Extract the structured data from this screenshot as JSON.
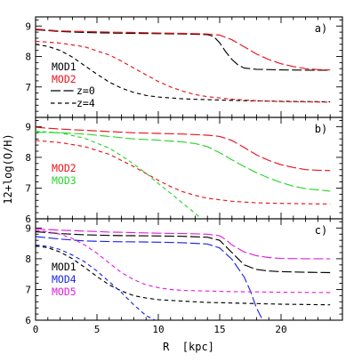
{
  "chart_data": [
    {
      "type": "line",
      "panel_label": "a)",
      "xlim": [
        0,
        25
      ],
      "ylim": [
        6,
        9.3
      ],
      "xticks": [
        0,
        5,
        10,
        15,
        20
      ],
      "yticks": [
        7,
        8,
        9
      ],
      "legend": [
        {
          "text": "MOD1",
          "color": "#000000"
        },
        {
          "text": "MOD2",
          "color": "#e8141c"
        }
      ],
      "redshift_key": [
        {
          "text": "z=0",
          "dash": "long"
        },
        {
          "text": "z=4",
          "dash": "short"
        }
      ],
      "series": [
        {
          "model": "MOD1",
          "z": "z=0",
          "color": "#000000",
          "dash": "long",
          "x": [
            0,
            2,
            4,
            6,
            8,
            10,
            12,
            13,
            14,
            14.5,
            15,
            15.5,
            16,
            16.5,
            17,
            18,
            20,
            22,
            24
          ],
          "y": [
            8.88,
            8.82,
            8.79,
            8.77,
            8.76,
            8.75,
            8.74,
            8.73,
            8.72,
            8.66,
            8.45,
            8.15,
            7.9,
            7.72,
            7.62,
            7.58,
            7.56,
            7.55,
            7.55
          ]
        },
        {
          "model": "MOD2",
          "z": "z=0",
          "color": "#e8141c",
          "dash": "long",
          "x": [
            0,
            2,
            4,
            6,
            8,
            10,
            12,
            14,
            15,
            16,
            17,
            18,
            19,
            20,
            21,
            22,
            23,
            24
          ],
          "y": [
            8.9,
            8.84,
            8.82,
            8.8,
            8.79,
            8.77,
            8.76,
            8.74,
            8.7,
            8.55,
            8.32,
            8.08,
            7.9,
            7.76,
            7.67,
            7.6,
            7.57,
            7.56
          ]
        },
        {
          "model": "MOD1",
          "z": "z=4",
          "color": "#000000",
          "dash": "short",
          "x": [
            0,
            1,
            2,
            3,
            4,
            5,
            6,
            7,
            8,
            9,
            10,
            12,
            14,
            17,
            20,
            24
          ],
          "y": [
            8.4,
            8.33,
            8.2,
            7.98,
            7.7,
            7.42,
            7.16,
            6.96,
            6.82,
            6.72,
            6.67,
            6.61,
            6.58,
            6.55,
            6.53,
            6.51
          ]
        },
        {
          "model": "MOD2",
          "z": "z=4",
          "color": "#e8141c",
          "dash": "short",
          "x": [
            0,
            2,
            4,
            6,
            7,
            8,
            9,
            10,
            11,
            12,
            13,
            14,
            16,
            18,
            20,
            22,
            24
          ],
          "y": [
            8.5,
            8.44,
            8.32,
            8.05,
            7.85,
            7.62,
            7.4,
            7.18,
            7.0,
            6.86,
            6.75,
            6.68,
            6.6,
            6.55,
            6.52,
            6.51,
            6.5
          ]
        }
      ]
    },
    {
      "type": "line",
      "panel_label": "b)",
      "xlim": [
        0,
        25
      ],
      "ylim": [
        6,
        9.3
      ],
      "xticks": [
        0,
        5,
        10,
        15,
        20
      ],
      "yticks": [
        6,
        7,
        8,
        9
      ],
      "legend": [
        {
          "text": "MOD2",
          "color": "#e8141c"
        },
        {
          "text": "MOD3",
          "color": "#2bd62b"
        }
      ],
      "series": [
        {
          "model": "MOD2",
          "z": "z=0",
          "color": "#e8141c",
          "dash": "long",
          "x": [
            0,
            2,
            4,
            6,
            8,
            10,
            12,
            14,
            15,
            16,
            17,
            18,
            19,
            20,
            21,
            22,
            23,
            24
          ],
          "y": [
            8.98,
            8.92,
            8.88,
            8.84,
            8.8,
            8.78,
            8.76,
            8.72,
            8.68,
            8.55,
            8.32,
            8.08,
            7.9,
            7.76,
            7.67,
            7.6,
            7.58,
            7.57
          ]
        },
        {
          "model": "MOD3",
          "z": "z=0",
          "color": "#2bd62b",
          "dash": "long",
          "x": [
            0,
            2,
            4,
            6,
            8,
            10,
            12,
            13,
            14,
            15,
            16,
            17,
            18,
            19,
            20,
            21,
            22,
            23,
            24
          ],
          "y": [
            8.82,
            8.8,
            8.76,
            8.68,
            8.6,
            8.56,
            8.5,
            8.45,
            8.35,
            8.15,
            7.92,
            7.7,
            7.5,
            7.33,
            7.18,
            7.06,
            6.98,
            6.94,
            6.9
          ]
        },
        {
          "model": "MOD2",
          "z": "z=4",
          "color": "#e8141c",
          "dash": "short",
          "x": [
            0,
            2,
            4,
            6,
            8,
            10,
            11,
            12,
            13,
            14,
            16,
            18,
            20,
            24
          ],
          "y": [
            8.55,
            8.48,
            8.35,
            8.1,
            7.7,
            7.25,
            7.05,
            6.88,
            6.76,
            6.67,
            6.57,
            6.52,
            6.5,
            6.48
          ]
        },
        {
          "model": "MOD3",
          "z": "z=4",
          "color": "#2bd62b",
          "dash": "short",
          "x": [
            0,
            2,
            4,
            6,
            7,
            8,
            9,
            10,
            11,
            12,
            13,
            13.5
          ],
          "y": [
            8.85,
            8.8,
            8.62,
            8.3,
            8.05,
            7.78,
            7.48,
            7.15,
            6.83,
            6.5,
            6.18,
            6.0
          ]
        }
      ]
    },
    {
      "type": "line",
      "panel_label": "c)",
      "xlim": [
        0,
        25
      ],
      "ylim": [
        6,
        9.3
      ],
      "xticks": [
        0,
        5,
        10,
        15,
        20
      ],
      "yticks": [
        6,
        7,
        8,
        9
      ],
      "xlabel": "R  [kpc]",
      "legend": [
        {
          "text": "MOD1",
          "color": "#000000"
        },
        {
          "text": "MOD4",
          "color": "#1c28e0"
        },
        {
          "text": "MOD5",
          "color": "#e020e0"
        }
      ],
      "series": [
        {
          "model": "MOD5",
          "z": "z=0",
          "color": "#e020e0",
          "dash": "long",
          "x": [
            0,
            2,
            4,
            6,
            8,
            10,
            12,
            14,
            15,
            15.5,
            16,
            17,
            18,
            19,
            20,
            22,
            24
          ],
          "y": [
            8.97,
            8.93,
            8.9,
            8.87,
            8.85,
            8.83,
            8.82,
            8.8,
            8.75,
            8.62,
            8.45,
            8.22,
            8.1,
            8.04,
            8.01,
            8.0,
            8.0
          ]
        },
        {
          "model": "MOD1",
          "z": "z=0",
          "color": "#000000",
          "dash": "long",
          "x": [
            0,
            2,
            4,
            6,
            8,
            10,
            12,
            14,
            15,
            15.5,
            16,
            17,
            18,
            19,
            20,
            22,
            24
          ],
          "y": [
            8.88,
            8.82,
            8.78,
            8.76,
            8.75,
            8.74,
            8.73,
            8.7,
            8.6,
            8.4,
            8.2,
            7.8,
            7.65,
            7.6,
            7.58,
            7.56,
            7.55
          ]
        },
        {
          "model": "MOD4",
          "z": "z=0",
          "color": "#1c28e0",
          "dash": "long",
          "x": [
            0,
            2,
            4,
            6,
            8,
            10,
            12,
            14,
            15,
            16,
            17,
            17.5,
            18,
            18.5
          ],
          "y": [
            8.72,
            8.64,
            8.58,
            8.56,
            8.55,
            8.54,
            8.52,
            8.48,
            8.35,
            7.98,
            7.4,
            6.95,
            6.4,
            6.0
          ]
        },
        {
          "model": "MOD5",
          "z": "z=4",
          "color": "#e020e0",
          "dash": "short",
          "x": [
            0,
            1,
            2,
            3,
            4,
            5,
            6,
            7,
            8,
            9,
            10,
            11,
            12,
            14,
            16,
            18,
            20,
            24
          ],
          "y": [
            8.92,
            8.88,
            8.8,
            8.66,
            8.45,
            8.18,
            7.86,
            7.55,
            7.32,
            7.15,
            7.06,
            7.0,
            6.97,
            6.95,
            6.93,
            6.92,
            6.91,
            6.9
          ]
        },
        {
          "model": "MOD1",
          "z": "z=4",
          "color": "#000000",
          "dash": "short",
          "x": [
            0,
            1,
            2,
            3,
            4,
            5,
            6,
            7,
            8,
            9,
            10,
            12,
            14,
            17,
            20,
            24
          ],
          "y": [
            8.42,
            8.36,
            8.22,
            8.0,
            7.72,
            7.42,
            7.15,
            6.95,
            6.8,
            6.72,
            6.67,
            6.62,
            6.58,
            6.55,
            6.52,
            6.5
          ]
        },
        {
          "model": "MOD4",
          "z": "z=4",
          "color": "#1c28e0",
          "dash": "short",
          "x": [
            0,
            1,
            2,
            3,
            4,
            5,
            6,
            7,
            8,
            9,
            10
          ],
          "y": [
            8.45,
            8.4,
            8.3,
            8.12,
            7.9,
            7.6,
            7.25,
            6.9,
            6.5,
            6.15,
            5.95
          ]
        }
      ]
    }
  ],
  "shared": {
    "ylabel": "12+log(O/H)",
    "xlabel": "R  [kpc]"
  }
}
